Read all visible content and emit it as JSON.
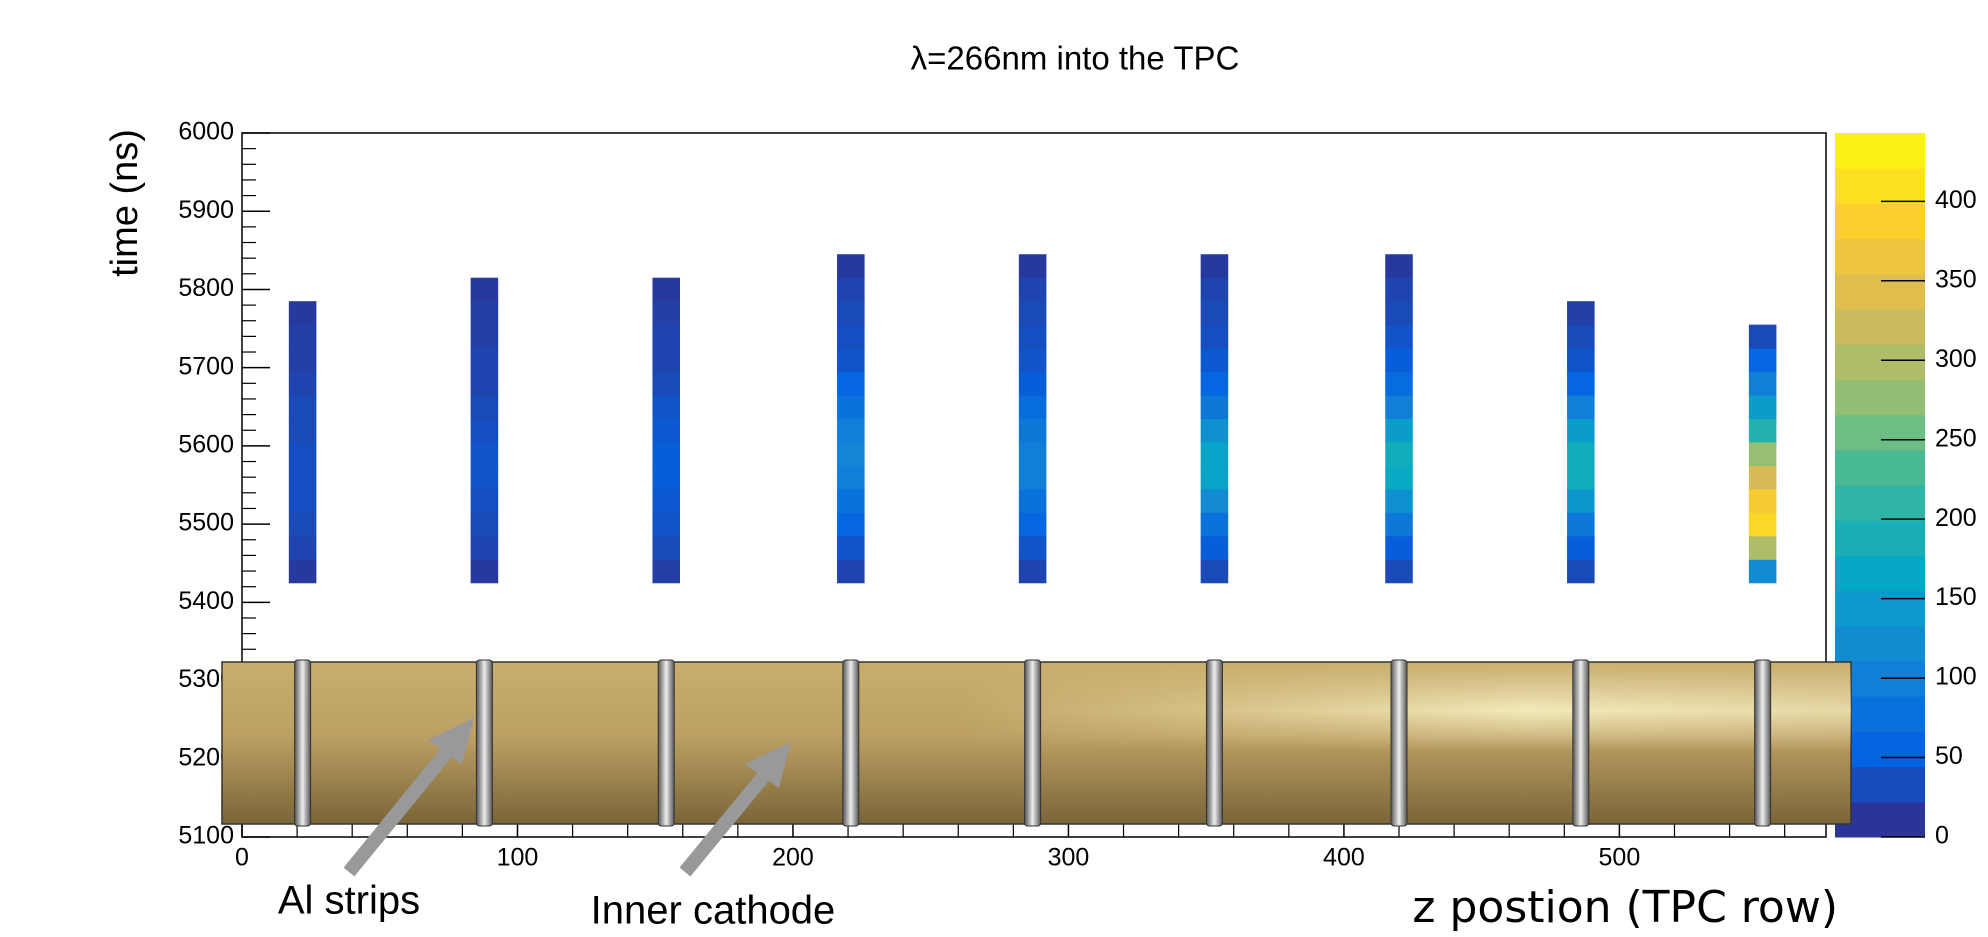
{
  "chart_data": {
    "type": "heatmap",
    "title": "λ=266nm into the TPC",
    "x_label": "z postion (TPC row)",
    "y_label": "time (ns)",
    "xlim": [
      0,
      575
    ],
    "xticks": [
      0,
      100,
      200,
      300,
      400,
      500
    ],
    "ylim": [
      5100,
      6000
    ],
    "yticks": [
      5100,
      5200,
      5300,
      5400,
      5500,
      5600,
      5700,
      5800,
      5900,
      6000
    ],
    "zlim": [
      0,
      443
    ],
    "zticks": [
      0,
      50,
      100,
      150,
      200,
      250,
      300,
      350,
      400
    ],
    "x": [
      22,
      88,
      154,
      221,
      287,
      353,
      420,
      486,
      552
    ],
    "y": [
      5440,
      5470,
      5500,
      5530,
      5560,
      5590,
      5620,
      5650,
      5680,
      5710,
      5740,
      5770,
      5800,
      5830
    ],
    "values": [
      [
        15,
        25,
        30,
        35,
        35,
        35,
        30,
        30,
        25,
        20,
        20,
        15,
        0,
        0
      ],
      [
        15,
        25,
        30,
        35,
        40,
        40,
        35,
        30,
        25,
        25,
        20,
        20,
        15,
        0
      ],
      [
        20,
        30,
        40,
        45,
        50,
        50,
        45,
        40,
        30,
        25,
        25,
        20,
        15,
        0
      ],
      [
        25,
        40,
        60,
        80,
        100,
        110,
        100,
        80,
        60,
        40,
        35,
        30,
        25,
        15
      ],
      [
        25,
        40,
        60,
        80,
        100,
        100,
        90,
        70,
        50,
        40,
        35,
        30,
        25,
        15
      ],
      [
        30,
        50,
        80,
        120,
        160,
        160,
        130,
        90,
        60,
        45,
        35,
        30,
        25,
        15
      ],
      [
        30,
        50,
        90,
        130,
        170,
        180,
        150,
        100,
        70,
        50,
        40,
        30,
        25,
        15
      ],
      [
        30,
        50,
        90,
        140,
        180,
        180,
        150,
        100,
        60,
        40,
        30,
        20,
        0,
        0
      ],
      [
        120,
        300,
        400,
        380,
        330,
        280,
        200,
        150,
        100,
        60,
        30,
        0,
        0,
        0
      ]
    ],
    "annotations": [
      "Al strips",
      "Inner cathode"
    ]
  }
}
